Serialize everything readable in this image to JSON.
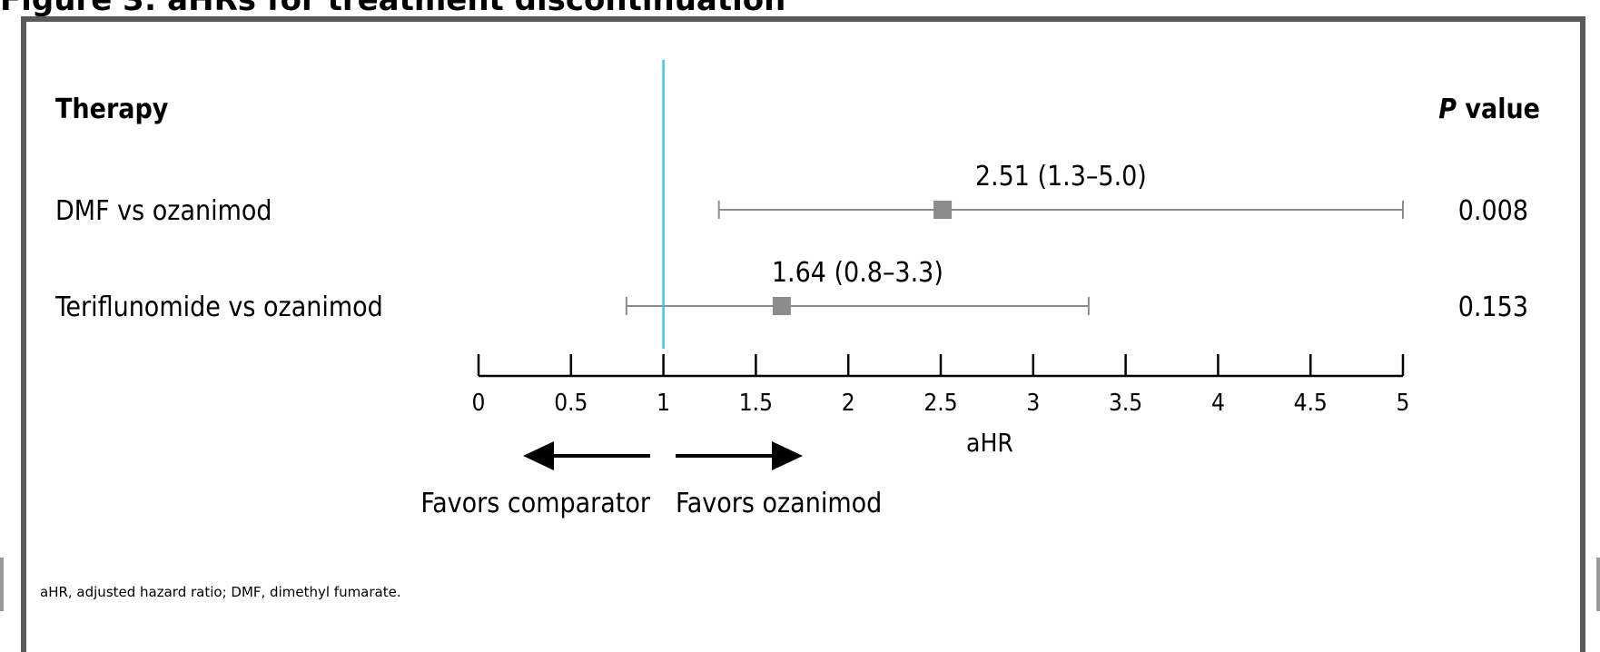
{
  "figure_title": "Figure 3: aHRs for treatment discontinuation",
  "footnote": "aHR, adjusted hazard ratio; DMF, dimethyl fumarate.",
  "colors": {
    "reference_line": "#4cc3e6",
    "marker": "#8c8c8c",
    "ci_line": "#8c8c8c",
    "frame": "#5a5a5a",
    "text": "#000000"
  },
  "chart_data": {
    "type": "forest",
    "column_headers": {
      "therapy": "Therapy",
      "p_value_italic": "P",
      "p_value_rest": " value"
    },
    "rows": [
      {
        "label": "DMF vs ozanimod",
        "estimate": 2.51,
        "ci_low": 1.3,
        "ci_high": 5.0,
        "estimate_label": "2.51 (1.3–5.0)",
        "p_value": "0.008"
      },
      {
        "label": "Teriflunomide vs ozanimod",
        "estimate": 1.64,
        "ci_low": 0.8,
        "ci_high": 3.3,
        "estimate_label": "1.64 (0.8–3.3)",
        "p_value": "0.153"
      }
    ],
    "xaxis": {
      "label": "aHR",
      "min": 0,
      "max": 5,
      "ticks": [
        0,
        0.5,
        1,
        1.5,
        2,
        2.5,
        3,
        3.5,
        4,
        4.5,
        5
      ],
      "tick_labels": [
        "0",
        "0.5",
        "1",
        "1.5",
        "2",
        "2.5",
        "3",
        "3.5",
        "4",
        "4.5",
        "5"
      ]
    },
    "reference_value": 1,
    "direction_labels": {
      "left": "Favors comparator",
      "right": "Favors ozanimod"
    },
    "grid": false
  }
}
